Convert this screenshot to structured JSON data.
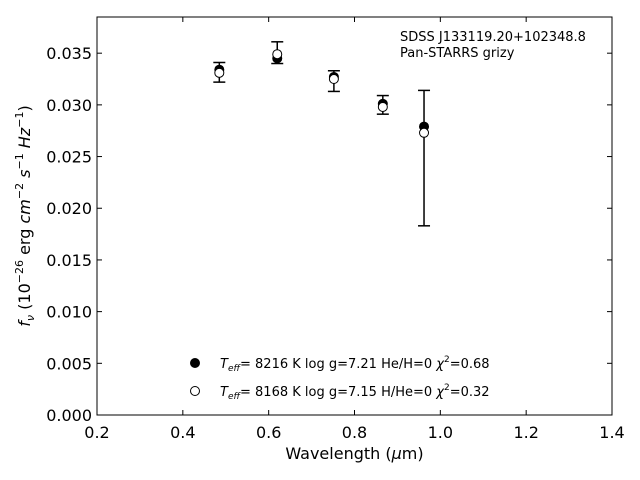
{
  "chart_data": {
    "type": "scatter",
    "annotation": [
      "SDSS J133119.20+102348.8",
      "Pan-STARRS grizy"
    ],
    "xlabel": {
      "main": "Wavelength (",
      "mu": "μ",
      "unit": "m)"
    },
    "ylabel": {
      "prefix": "f",
      "sub": "ν",
      "open": " (10",
      "exp1": "−26",
      "erg": " erg ",
      "cm": "cm",
      "exp2": "−2",
      "s": " s",
      "exp3": "−1",
      "hz": " Hz",
      "exp4": "−1",
      "close": ")"
    },
    "xlim": [
      0.2,
      1.4
    ],
    "ylim": [
      0.0,
      0.0385
    ],
    "xticks": [
      0.2,
      0.4,
      0.6,
      0.8,
      1.0,
      1.2,
      1.4
    ],
    "xtick_labels": [
      "0.2",
      "0.4",
      "0.6",
      "0.8",
      "1.0",
      "1.2",
      "1.4"
    ],
    "yticks": [
      0.0,
      0.005,
      0.01,
      0.015,
      0.02,
      0.025,
      0.03,
      0.035
    ],
    "ytick_labels": [
      "0.000",
      "0.005",
      "0.010",
      "0.015",
      "0.020",
      "0.025",
      "0.030",
      "0.035"
    ],
    "grid": false,
    "legend_position": "bottom-center",
    "observed": {
      "x": [
        0.485,
        0.62,
        0.752,
        0.866,
        0.962
      ],
      "y": [
        0.0331,
        0.0347,
        0.0323,
        0.0299,
        0.0278
      ],
      "yerr_low": [
        0.0322,
        0.034,
        0.0313,
        0.0291,
        0.0183
      ],
      "yerr_high": [
        0.0341,
        0.0361,
        0.0333,
        0.0309,
        0.0314
      ]
    },
    "series": [
      {
        "marker": "filled",
        "x": [
          0.485,
          0.62,
          0.752,
          0.866,
          0.962
        ],
        "y": [
          0.0334,
          0.0345,
          0.0327,
          0.0301,
          0.0279
        ],
        "legend": {
          "teff": "T",
          "teff_sub": "eff",
          "text1": "=  8216 K  log g=7.21  He/H=0  ",
          "chi": "χ",
          "chi_exp": "2",
          "text2": "=0.68"
        }
      },
      {
        "marker": "open",
        "x": [
          0.485,
          0.62,
          0.752,
          0.866,
          0.962
        ],
        "y": [
          0.0331,
          0.0349,
          0.0325,
          0.0298,
          0.0273
        ],
        "legend": {
          "teff": "T",
          "teff_sub": "eff",
          "text1": "=  8168 K  log g=7.15  H/He=0  ",
          "chi": "χ",
          "chi_exp": "2",
          "text2": "=0.32"
        }
      }
    ]
  }
}
